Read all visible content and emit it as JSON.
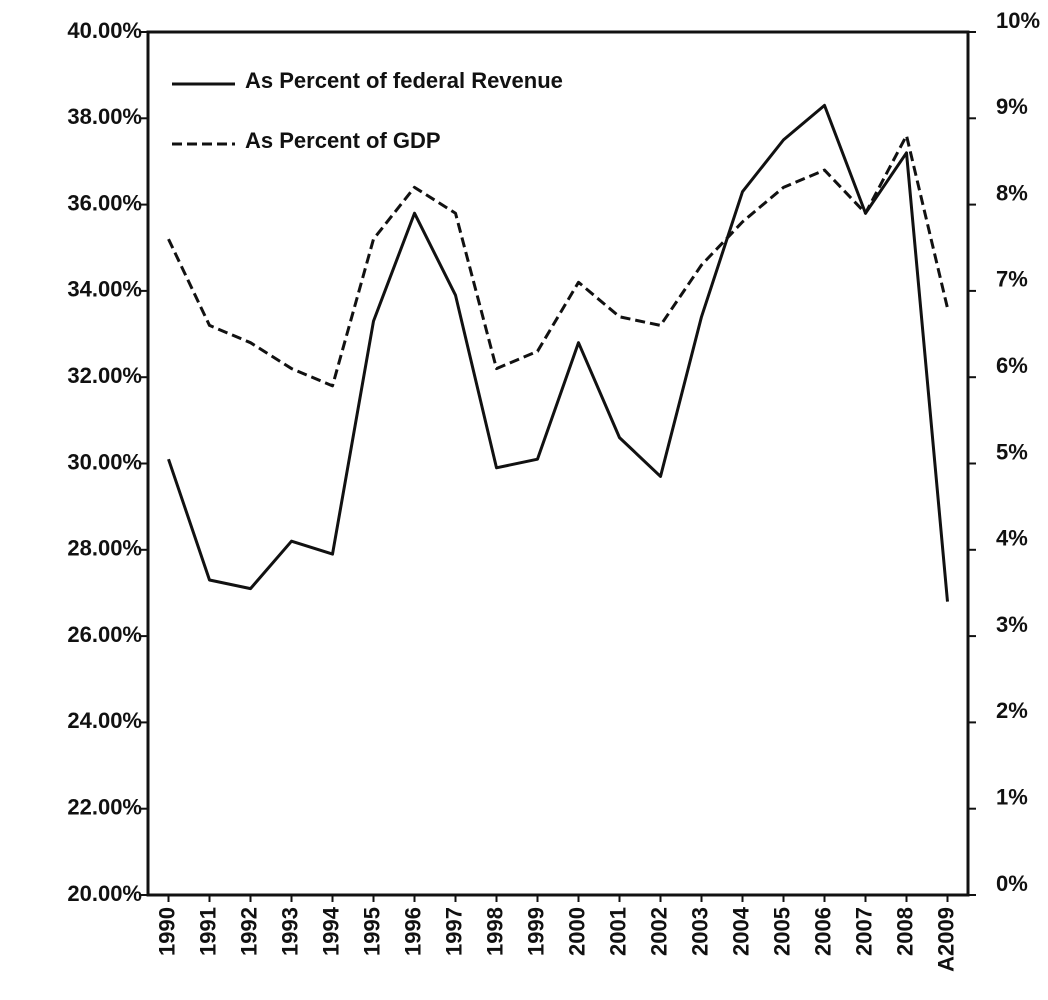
{
  "chart_data": {
    "type": "line",
    "categories": [
      "1990",
      "1991",
      "1992",
      "1993",
      "1994",
      "1995",
      "1996",
      "1997",
      "1998",
      "1999",
      "2000",
      "2001",
      "2002",
      "2003",
      "2004",
      "2005",
      "2006",
      "2007",
      "2008",
      "A2009"
    ],
    "series": [
      {
        "name": "As Percent of federal Revenue",
        "color": "#111111",
        "linestyle": "solid",
        "values": [
          30.1,
          27.3,
          27.1,
          28.2,
          27.9,
          33.3,
          35.8,
          33.9,
          29.9,
          30.1,
          32.8,
          30.6,
          29.7,
          33.4,
          36.3,
          37.5,
          38.3,
          35.8,
          37.2,
          26.8
        ]
      },
      {
        "name": "As Percent of GDP",
        "color": "#111111",
        "linestyle": "dashed",
        "axis": "y2",
        "values": [
          7.6,
          6.6,
          6.4,
          6.1,
          5.9,
          7.6,
          8.2,
          7.9,
          6.1,
          6.3,
          7.1,
          6.7,
          6.6,
          7.3,
          7.8,
          8.2,
          8.4,
          7.9,
          8.8,
          6.8
        ]
      }
    ],
    "ylim": [
      20,
      40
    ],
    "yticks": [
      {
        "value": 20,
        "label": "20.00%"
      },
      {
        "value": 22,
        "label": "22.00%"
      },
      {
        "value": 24,
        "label": "24.00%"
      },
      {
        "value": 26,
        "label": "26.00%"
      },
      {
        "value": 28,
        "label": "28.00%"
      },
      {
        "value": 30,
        "label": "30.00%"
      },
      {
        "value": 32,
        "label": "32.00%"
      },
      {
        "value": 34,
        "label": "34.00%"
      },
      {
        "value": 36,
        "label": "36.00%"
      },
      {
        "value": 38,
        "label": "38.00%"
      },
      {
        "value": 40,
        "label": "40.00%"
      }
    ],
    "y2lim": [
      0,
      10
    ],
    "y2ticks": [
      {
        "value": 0,
        "label": "0%"
      },
      {
        "value": 1,
        "label": "1%"
      },
      {
        "value": 2,
        "label": "2%"
      },
      {
        "value": 3,
        "label": "3%"
      },
      {
        "value": 4,
        "label": "4%"
      },
      {
        "value": 5,
        "label": "5%"
      },
      {
        "value": 6,
        "label": "6%"
      },
      {
        "value": 7,
        "label": "7%"
      },
      {
        "value": 8,
        "label": "8%"
      },
      {
        "value": 9,
        "label": "9%"
      },
      {
        "value": 10,
        "label": "10%"
      }
    ],
    "legend": "upper left",
    "grid": false
  }
}
